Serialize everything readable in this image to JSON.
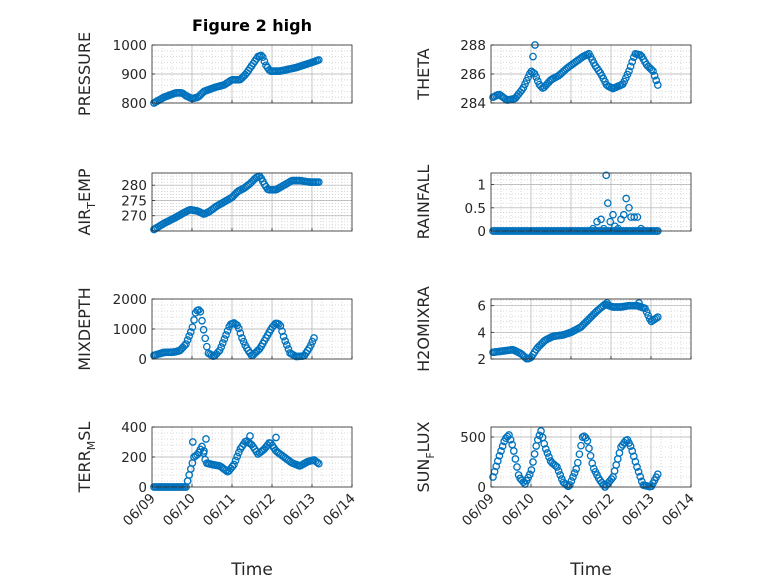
{
  "figure_title": "Figure 2 high",
  "colors": {
    "marker": "#0072BD",
    "grid": "#b0b0b0",
    "axis": "#262626"
  },
  "chart_data": [
    {
      "type": "scatter",
      "id": "pressure",
      "ylabel_main": "PRESSURE",
      "ylabel_sub": "",
      "ylim": [
        800,
        1000
      ],
      "yticks": [
        "800",
        "900",
        "1000"
      ],
      "grid": true,
      "xlim": [
        "06/09",
        "06/14"
      ],
      "xticks": [
        "06/09",
        "06/10",
        "06/11",
        "06/12",
        "06/13",
        "06/14"
      ],
      "keypoints": [
        [
          9.05,
          800
        ],
        [
          9.3,
          820
        ],
        [
          9.6,
          835
        ],
        [
          9.75,
          835
        ],
        [
          9.85,
          825
        ],
        [
          10.0,
          815
        ],
        [
          10.15,
          820
        ],
        [
          10.3,
          840
        ],
        [
          10.6,
          855
        ],
        [
          10.8,
          862
        ],
        [
          11.0,
          880
        ],
        [
          11.2,
          880
        ],
        [
          11.35,
          900
        ],
        [
          11.5,
          930
        ],
        [
          11.65,
          960
        ],
        [
          11.75,
          965
        ],
        [
          11.85,
          930
        ],
        [
          11.95,
          910
        ],
        [
          12.2,
          910
        ],
        [
          12.6,
          922
        ],
        [
          13.0,
          940
        ],
        [
          13.2,
          950
        ]
      ]
    },
    {
      "type": "scatter",
      "id": "theta",
      "ylabel_main": "THETA",
      "ylabel_sub": "",
      "ylim": [
        284,
        288
      ],
      "yticks": [
        "284",
        "286",
        "288"
      ],
      "grid": true,
      "xlim": [
        "06/09",
        "06/14"
      ],
      "xticks": [
        "06/09",
        "06/10",
        "06/11",
        "06/12",
        "06/13",
        "06/14"
      ],
      "keypoints": [
        [
          9.05,
          284.4
        ],
        [
          9.2,
          284.6
        ],
        [
          9.4,
          284.2
        ],
        [
          9.6,
          284.3
        ],
        [
          9.8,
          285
        ],
        [
          10.0,
          286.2
        ],
        [
          10.1,
          286
        ],
        [
          10.2,
          285.3
        ],
        [
          10.3,
          285
        ],
        [
          10.5,
          285.6
        ],
        [
          10.7,
          285.9
        ],
        [
          10.9,
          286.4
        ],
        [
          11.1,
          286.8
        ],
        [
          11.3,
          287.2
        ],
        [
          11.45,
          287.4
        ],
        [
          11.6,
          286.6
        ],
        [
          11.75,
          286
        ],
        [
          11.9,
          285.2
        ],
        [
          12.05,
          285
        ],
        [
          12.3,
          285.3
        ],
        [
          12.45,
          286.2
        ],
        [
          12.6,
          287.4
        ],
        [
          12.75,
          287.3
        ],
        [
          12.9,
          286.6
        ],
        [
          13.05,
          286.2
        ],
        [
          13.2,
          285
        ]
      ],
      "outliers": [
        [
          10.1,
          288
        ],
        [
          10.05,
          287.2
        ]
      ]
    },
    {
      "type": "scatter",
      "id": "air_temp",
      "ylabel_main": "AIR",
      "ylabel_sub": "T",
      "ylabel_tail": "EMP",
      "ylim": [
        265,
        284
      ],
      "yticks": [
        "270",
        "275",
        "280"
      ],
      "grid": true,
      "xlim": [
        "06/09",
        "06/14"
      ],
      "xticks": [
        "06/09",
        "06/10",
        "06/11",
        "06/12",
        "06/13",
        "06/14"
      ],
      "keypoints": [
        [
          9.05,
          265.5
        ],
        [
          9.3,
          267.5
        ],
        [
          9.6,
          269.5
        ],
        [
          9.8,
          271
        ],
        [
          9.95,
          272
        ],
        [
          10.15,
          271.5
        ],
        [
          10.3,
          270.5
        ],
        [
          10.45,
          271.5
        ],
        [
          10.6,
          273
        ],
        [
          10.8,
          274.5
        ],
        [
          11.0,
          276
        ],
        [
          11.15,
          278
        ],
        [
          11.3,
          279
        ],
        [
          11.45,
          280.5
        ],
        [
          11.6,
          282.5
        ],
        [
          11.7,
          283
        ],
        [
          11.8,
          280.5
        ],
        [
          11.9,
          278.5
        ],
        [
          12.1,
          278.5
        ],
        [
          12.3,
          280
        ],
        [
          12.5,
          281.5
        ],
        [
          12.7,
          281.5
        ],
        [
          12.95,
          281
        ],
        [
          13.2,
          281
        ]
      ]
    },
    {
      "type": "scatter",
      "id": "rainfall",
      "ylabel_main": "RAINFALL",
      "ylabel_sub": "",
      "ylim": [
        0,
        1.25
      ],
      "yticks": [
        "0",
        "0.5",
        "1"
      ],
      "grid": true,
      "xlim": [
        "06/09",
        "06/14"
      ],
      "xticks": [
        "06/09",
        "06/10",
        "06/11",
        "06/12",
        "06/13",
        "06/14"
      ],
      "keypoints": [
        [
          9.05,
          0
        ],
        [
          13.2,
          0
        ]
      ],
      "outliers": [
        [
          11.55,
          0.05
        ],
        [
          11.65,
          0.2
        ],
        [
          11.75,
          0.25
        ],
        [
          11.82,
          0.05
        ],
        [
          11.88,
          1.2
        ],
        [
          11.92,
          0.6
        ],
        [
          11.98,
          0.2
        ],
        [
          12.05,
          0.35
        ],
        [
          12.1,
          0.1
        ],
        [
          12.18,
          0.05
        ],
        [
          12.25,
          0.25
        ],
        [
          12.32,
          0.35
        ],
        [
          12.38,
          0.7
        ],
        [
          12.45,
          0.5
        ],
        [
          12.5,
          0.3
        ],
        [
          12.58,
          0.3
        ],
        [
          12.66,
          0.3
        ],
        [
          12.75,
          0.05
        ]
      ]
    },
    {
      "type": "scatter",
      "id": "mixdepth",
      "ylabel_main": "MIXDEPTH",
      "ylabel_sub": "",
      "ylim": [
        0,
        2000
      ],
      "yticks": [
        "0",
        "1000",
        "2000"
      ],
      "grid": true,
      "xlim": [
        "06/09",
        "06/14"
      ],
      "xticks": [
        "06/09",
        "06/10",
        "06/11",
        "06/12",
        "06/13",
        "06/14"
      ],
      "keypoints": [
        [
          9.05,
          120
        ],
        [
          9.3,
          220
        ],
        [
          9.55,
          230
        ],
        [
          9.7,
          280
        ],
        [
          9.85,
          500
        ],
        [
          10.0,
          1000
        ],
        [
          10.1,
          1600
        ],
        [
          10.2,
          1650
        ],
        [
          10.3,
          900
        ],
        [
          10.4,
          200
        ],
        [
          10.55,
          80
        ],
        [
          10.7,
          300
        ],
        [
          10.85,
          800
        ],
        [
          10.95,
          1150
        ],
        [
          11.05,
          1200
        ],
        [
          11.15,
          1100
        ],
        [
          11.25,
          700
        ],
        [
          11.35,
          400
        ],
        [
          11.5,
          100
        ],
        [
          11.7,
          350
        ],
        [
          11.85,
          700
        ],
        [
          12.0,
          1050
        ],
        [
          12.1,
          1200
        ],
        [
          12.2,
          1150
        ],
        [
          12.3,
          700
        ],
        [
          12.45,
          200
        ],
        [
          12.6,
          80
        ],
        [
          12.8,
          100
        ],
        [
          12.95,
          400
        ],
        [
          13.05,
          700
        ]
      ]
    },
    {
      "type": "scatter",
      "id": "h2omixra",
      "ylabel_main": "H2OMIXRA",
      "ylabel_sub": "",
      "ylim": [
        2,
        6.5
      ],
      "yticks": [
        "2",
        "4",
        "6"
      ],
      "grid": true,
      "xlim": [
        "06/09",
        "06/14"
      ],
      "xticks": [
        "06/09",
        "06/10",
        "06/11",
        "06/12",
        "06/13",
        "06/14"
      ],
      "keypoints": [
        [
          9.05,
          2.5
        ],
        [
          9.3,
          2.6
        ],
        [
          9.55,
          2.7
        ],
        [
          9.75,
          2.4
        ],
        [
          9.9,
          2.0
        ],
        [
          10.0,
          2.1
        ],
        [
          10.15,
          2.8
        ],
        [
          10.35,
          3.4
        ],
        [
          10.55,
          3.7
        ],
        [
          10.8,
          3.8
        ],
        [
          11.0,
          4.0
        ],
        [
          11.25,
          4.4
        ],
        [
          11.45,
          5.0
        ],
        [
          11.65,
          5.6
        ],
        [
          11.85,
          6.1
        ],
        [
          12.05,
          5.9
        ],
        [
          12.25,
          5.9
        ],
        [
          12.45,
          6.0
        ],
        [
          12.65,
          6.0
        ],
        [
          12.85,
          5.8
        ],
        [
          13.0,
          4.8
        ],
        [
          13.2,
          5.2
        ]
      ],
      "outliers": [
        [
          11.9,
          6.2
        ],
        [
          12.7,
          6.2
        ]
      ]
    },
    {
      "type": "scatter",
      "id": "terr_msl",
      "ylabel_main": "TERR",
      "ylabel_sub": "M",
      "ylabel_tail": "SL",
      "ylim": [
        0,
        400
      ],
      "yticks": [
        "0",
        "200",
        "400"
      ],
      "grid": true,
      "xlim": [
        "06/09",
        "06/14"
      ],
      "xticks": [
        "06/09",
        "06/10",
        "06/11",
        "06/12",
        "06/13",
        "06/14"
      ],
      "keypoints": [
        [
          9.05,
          0
        ],
        [
          9.85,
          0
        ],
        [
          9.95,
          100
        ],
        [
          10.05,
          200
        ],
        [
          10.15,
          220
        ],
        [
          10.25,
          270
        ],
        [
          10.35,
          160
        ],
        [
          10.5,
          150
        ],
        [
          10.7,
          140
        ],
        [
          10.9,
          100
        ],
        [
          11.05,
          150
        ],
        [
          11.2,
          250
        ],
        [
          11.35,
          310
        ],
        [
          11.5,
          280
        ],
        [
          11.65,
          220
        ],
        [
          11.8,
          250
        ],
        [
          11.95,
          300
        ],
        [
          12.1,
          240
        ],
        [
          12.3,
          200
        ],
        [
          12.5,
          160
        ],
        [
          12.7,
          140
        ],
        [
          12.9,
          170
        ],
        [
          13.05,
          180
        ],
        [
          13.2,
          150
        ]
      ],
      "outliers": [
        [
          10.02,
          300
        ],
        [
          10.35,
          320
        ],
        [
          10.3,
          240
        ],
        [
          11.45,
          340
        ],
        [
          12.1,
          330
        ]
      ]
    },
    {
      "type": "scatter",
      "id": "sun_flux",
      "ylabel_main": "SUN",
      "ylabel_sub": "F",
      "ylabel_tail": "LUX",
      "ylim": [
        0,
        600
      ],
      "yticks": [
        "0",
        "500"
      ],
      "grid": true,
      "xlim": [
        "06/09",
        "06/14"
      ],
      "xticks": [
        "06/09",
        "06/10",
        "06/11",
        "06/12",
        "06/13",
        "06/14"
      ],
      "keypoints": [
        [
          9.05,
          100
        ],
        [
          9.2,
          300
        ],
        [
          9.35,
          480
        ],
        [
          9.45,
          520
        ],
        [
          9.55,
          400
        ],
        [
          9.7,
          100
        ],
        [
          9.85,
          30
        ],
        [
          10.0,
          150
        ],
        [
          10.15,
          450
        ],
        [
          10.25,
          560
        ],
        [
          10.35,
          400
        ],
        [
          10.5,
          250
        ],
        [
          10.65,
          200
        ],
        [
          10.8,
          50
        ],
        [
          10.95,
          0
        ],
        [
          11.15,
          200
        ],
        [
          11.3,
          520
        ],
        [
          11.4,
          480
        ],
        [
          11.55,
          200
        ],
        [
          11.7,
          80
        ],
        [
          11.85,
          0
        ],
        [
          12.05,
          100
        ],
        [
          12.25,
          400
        ],
        [
          12.4,
          480
        ],
        [
          12.5,
          400
        ],
        [
          12.65,
          200
        ],
        [
          12.8,
          20
        ],
        [
          13.0,
          0
        ],
        [
          13.2,
          150
        ]
      ]
    }
  ],
  "x_axis_label": "Time"
}
